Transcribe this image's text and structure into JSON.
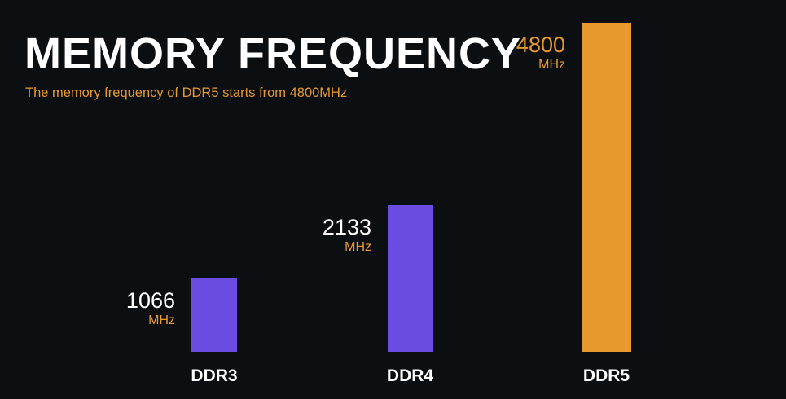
{
  "header": {
    "title": "MEMORY FREQUENCY",
    "subtitle": "The memory frequency of DDR5 starts from 4800MHz"
  },
  "colors": {
    "background": "#0c0f12",
    "title_text": "#ffffff",
    "accent_orange": "#e8992e",
    "bar_purple": "#6a4ce0"
  },
  "chart_data": {
    "type": "bar",
    "title": "MEMORY FREQUENCY",
    "subtitle": "The memory frequency of DDR5 starts from 4800MHz",
    "categories": [
      "DDR3",
      "DDR4",
      "DDR5"
    ],
    "values": [
      1066,
      2133,
      4800
    ],
    "unit": "MHz",
    "bar_colors": [
      "#6a4ce0",
      "#6a4ce0",
      "#e8992e"
    ],
    "value_label_colors": [
      "#ffffff",
      "#ffffff",
      "#e8992e"
    ],
    "xlabel": "",
    "ylabel": "",
    "ylim": [
      0,
      4800
    ],
    "grid": false,
    "legend": false
  }
}
